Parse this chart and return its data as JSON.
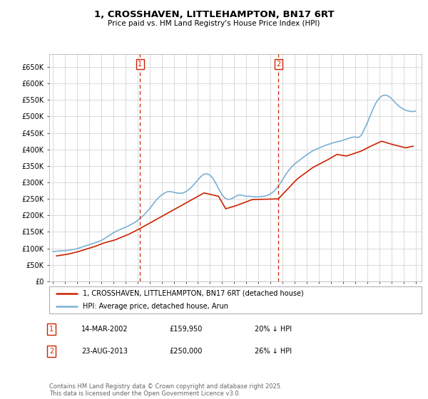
{
  "title": "1, CROSSHAVEN, LITTLEHAMPTON, BN17 6RT",
  "subtitle": "Price paid vs. HM Land Registry's House Price Index (HPI)",
  "yticks": [
    0,
    50000,
    100000,
    150000,
    200000,
    250000,
    300000,
    350000,
    400000,
    450000,
    500000,
    550000,
    600000,
    650000
  ],
  "ytick_labels": [
    "£0",
    "£50K",
    "£100K",
    "£150K",
    "£200K",
    "£250K",
    "£300K",
    "£350K",
    "£400K",
    "£450K",
    "£500K",
    "£550K",
    "£600K",
    "£650K"
  ],
  "xlim_start": 1994.7,
  "xlim_end": 2025.5,
  "ylim_min": 0,
  "ylim_max": 690000,
  "bg_color": "#ffffff",
  "grid_color": "#cccccc",
  "hpi_color": "#7ab0d4",
  "price_color": "#cc2200",
  "marker1_x": 2002.2,
  "marker2_x": 2013.65,
  "legend_line1": "1, CROSSHAVEN, LITTLEHAMPTON, BN17 6RT (detached house)",
  "legend_line2": "HPI: Average price, detached house, Arun",
  "annotation1_label": "1",
  "annotation1_date": "14-MAR-2002",
  "annotation1_price": "£159,950",
  "annotation1_hpi": "20% ↓ HPI",
  "annotation2_label": "2",
  "annotation2_date": "23-AUG-2013",
  "annotation2_price": "£250,000",
  "annotation2_hpi": "26% ↓ HPI",
  "footer": "Contains HM Land Registry data © Crown copyright and database right 2025.\nThis data is licensed under the Open Government Licence v3.0.",
  "hpi_data_x": [
    1995.0,
    1995.25,
    1995.5,
    1995.75,
    1996.0,
    1996.25,
    1996.5,
    1996.75,
    1997.0,
    1997.25,
    1997.5,
    1997.75,
    1998.0,
    1998.25,
    1998.5,
    1998.75,
    1999.0,
    1999.25,
    1999.5,
    1999.75,
    2000.0,
    2000.25,
    2000.5,
    2000.75,
    2001.0,
    2001.25,
    2001.5,
    2001.75,
    2002.0,
    2002.25,
    2002.5,
    2002.75,
    2003.0,
    2003.25,
    2003.5,
    2003.75,
    2004.0,
    2004.25,
    2004.5,
    2004.75,
    2005.0,
    2005.25,
    2005.5,
    2005.75,
    2006.0,
    2006.25,
    2006.5,
    2006.75,
    2007.0,
    2007.25,
    2007.5,
    2007.75,
    2008.0,
    2008.25,
    2008.5,
    2008.75,
    2009.0,
    2009.25,
    2009.5,
    2009.75,
    2010.0,
    2010.25,
    2010.5,
    2010.75,
    2011.0,
    2011.25,
    2011.5,
    2011.75,
    2012.0,
    2012.25,
    2012.5,
    2012.75,
    2013.0,
    2013.25,
    2013.5,
    2013.75,
    2014.0,
    2014.25,
    2014.5,
    2014.75,
    2015.0,
    2015.25,
    2015.5,
    2015.75,
    2016.0,
    2016.25,
    2016.5,
    2016.75,
    2017.0,
    2017.25,
    2017.5,
    2017.75,
    2018.0,
    2018.25,
    2018.5,
    2018.75,
    2019.0,
    2019.25,
    2019.5,
    2019.75,
    2020.0,
    2020.25,
    2020.5,
    2020.75,
    2021.0,
    2021.25,
    2021.5,
    2021.75,
    2022.0,
    2022.25,
    2022.5,
    2022.75,
    2023.0,
    2023.25,
    2023.5,
    2023.75,
    2024.0,
    2024.25,
    2024.5,
    2024.75,
    2025.0
  ],
  "hpi_data_y": [
    90000,
    91000,
    92000,
    92500,
    93000,
    94000,
    95500,
    97000,
    99000,
    102000,
    105000,
    108000,
    111000,
    114000,
    117000,
    120000,
    124000,
    129000,
    135000,
    141000,
    147000,
    152000,
    156000,
    160000,
    164000,
    168000,
    173000,
    178000,
    184000,
    191000,
    200000,
    210000,
    220000,
    232000,
    244000,
    254000,
    262000,
    268000,
    272000,
    272000,
    270000,
    268000,
    267000,
    268000,
    272000,
    278000,
    287000,
    297000,
    308000,
    318000,
    325000,
    326000,
    322000,
    312000,
    296000,
    278000,
    262000,
    252000,
    248000,
    250000,
    255000,
    260000,
    262000,
    260000,
    258000,
    258000,
    257000,
    256000,
    256000,
    257000,
    258000,
    261000,
    265000,
    272000,
    282000,
    294000,
    308000,
    323000,
    336000,
    347000,
    356000,
    363000,
    370000,
    377000,
    384000,
    390000,
    396000,
    400000,
    404000,
    408000,
    412000,
    415000,
    418000,
    421000,
    423000,
    425000,
    428000,
    431000,
    434000,
    437000,
    438000,
    436000,
    442000,
    460000,
    480000,
    502000,
    524000,
    543000,
    556000,
    563000,
    565000,
    562000,
    555000,
    545000,
    535000,
    528000,
    522000,
    518000,
    516000,
    515000,
    516000
  ],
  "price_data_x": [
    1995.3,
    1996.2,
    1997.1,
    1998.5,
    1999.2,
    2000.1,
    2001.3,
    2002.2,
    2007.5,
    2008.7,
    2009.3,
    2010.2,
    2011.5,
    2013.65,
    2015.2,
    2016.5,
    2017.8,
    2018.5,
    2019.3,
    2020.5,
    2021.3,
    2022.2,
    2023.1,
    2024.2,
    2024.8
  ],
  "price_data_y": [
    77000,
    82000,
    90000,
    106000,
    116000,
    125000,
    143000,
    159950,
    268000,
    258000,
    220000,
    230000,
    248000,
    250000,
    310000,
    345000,
    370000,
    385000,
    380000,
    395000,
    410000,
    425000,
    415000,
    405000,
    410000
  ]
}
